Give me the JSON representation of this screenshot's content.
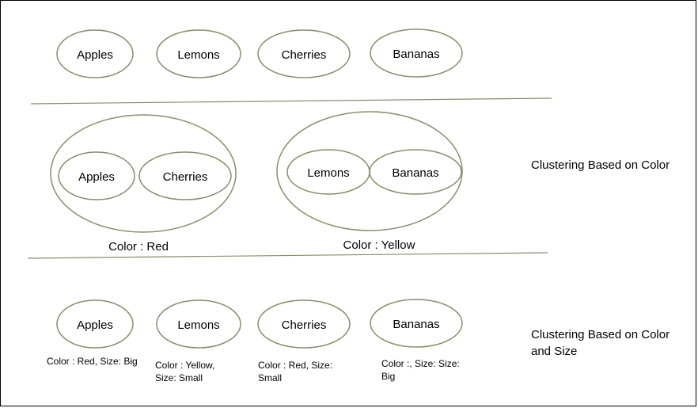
{
  "row1": {
    "items": [
      "Apples",
      "Lemons",
      "Cherries",
      "Bananas"
    ]
  },
  "row2": {
    "clusters": [
      {
        "items": [
          "Apples",
          "Cherries"
        ],
        "caption": "Color : Red"
      },
      {
        "items": [
          "Lemons",
          "Bananas"
        ],
        "caption": "Color : Yellow"
      }
    ],
    "side_label": "Clustering Based on Color"
  },
  "row3": {
    "items": [
      {
        "name": "Apples",
        "notes": [
          "Color : Red, Size: Big"
        ]
      },
      {
        "name": "Lemons",
        "notes": [
          "Color : Yellow,",
          "Size: Small"
        ]
      },
      {
        "name": "Cherries",
        "notes": [
          "Color : Red, Size:",
          "Small"
        ]
      },
      {
        "name": "Bananas",
        "notes": [
          "Color :, Size: Size:",
          "Big"
        ]
      }
    ],
    "side_label": [
      "Clustering Based on Color",
      "and Size"
    ]
  },
  "colors": {
    "outline": "#8e8a6c",
    "text": "#000000"
  }
}
